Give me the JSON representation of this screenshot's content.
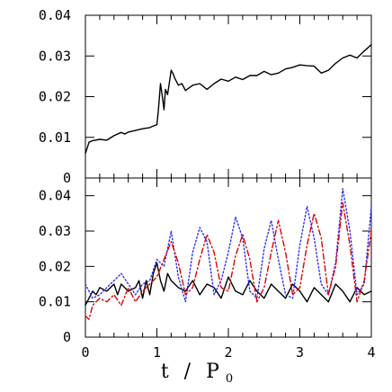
{
  "chart_data": [
    {
      "type": "line",
      "panel": "top",
      "xlim": [
        0,
        4
      ],
      "ylim": [
        0,
        0.04
      ],
      "y_ticks": [
        0,
        0.01,
        0.02,
        0.03,
        0.04
      ],
      "y_tick_labels": [
        "0",
        "0.01",
        "0.02",
        "0.03",
        "0.04"
      ],
      "grid": false,
      "series": [
        {
          "color": "#000000",
          "style": "solid",
          "x": [
            0,
            0.05,
            0.1,
            0.2,
            0.3,
            0.4,
            0.5,
            0.55,
            0.6,
            0.7,
            0.8,
            0.9,
            0.95,
            1.0,
            1.02,
            1.05,
            1.08,
            1.1,
            1.12,
            1.15,
            1.2,
            1.23,
            1.25,
            1.3,
            1.35,
            1.4,
            1.5,
            1.6,
            1.7,
            1.8,
            1.9,
            2.0,
            2.1,
            2.2,
            2.3,
            2.4,
            2.5,
            2.6,
            2.7,
            2.8,
            2.9,
            3.0,
            3.1,
            3.2,
            3.3,
            3.4,
            3.5,
            3.6,
            3.7,
            3.8,
            3.9,
            4.0
          ],
          "y": [
            0.006,
            0.0088,
            0.0092,
            0.0095,
            0.0093,
            0.0104,
            0.0112,
            0.0108,
            0.0113,
            0.0117,
            0.0121,
            0.0124,
            0.0128,
            0.0131,
            0.0165,
            0.0232,
            0.0195,
            0.0168,
            0.0218,
            0.0205,
            0.0265,
            0.0255,
            0.0245,
            0.0228,
            0.0232,
            0.0215,
            0.0228,
            0.0232,
            0.0218,
            0.0232,
            0.0243,
            0.0238,
            0.0248,
            0.0242,
            0.0252,
            0.0252,
            0.0262,
            0.0254,
            0.0258,
            0.0268,
            0.0272,
            0.0278,
            0.0276,
            0.0275,
            0.0258,
            0.0265,
            0.0282,
            0.0295,
            0.0302,
            0.0295,
            0.0312,
            0.0328
          ]
        }
      ]
    },
    {
      "type": "line",
      "panel": "bottom",
      "xlabel": "t",
      "xlabel_sep": "/",
      "xlabel_var": "P",
      "xlabel_sub": "0",
      "xlim": [
        0,
        4
      ],
      "ylim": [
        0,
        0.045
      ],
      "x_ticks": [
        0,
        1,
        2,
        3,
        4
      ],
      "x_tick_labels": [
        "0",
        "1",
        "2",
        "3",
        "4"
      ],
      "y_ticks": [
        0,
        0.01,
        0.02,
        0.03,
        0.04
      ],
      "y_tick_labels": [
        "0",
        "0.01",
        "0.02",
        "0.03",
        "0.04"
      ],
      "grid": false,
      "series": [
        {
          "color": "#000000",
          "style": "solid",
          "x": [
            0,
            0.05,
            0.1,
            0.15,
            0.2,
            0.3,
            0.4,
            0.45,
            0.5,
            0.6,
            0.7,
            0.75,
            0.8,
            0.85,
            0.9,
            0.95,
            1.0,
            1.05,
            1.1,
            1.15,
            1.2,
            1.3,
            1.4,
            1.5,
            1.6,
            1.7,
            1.8,
            1.9,
            2.0,
            2.1,
            2.2,
            2.3,
            2.4,
            2.5,
            2.6,
            2.7,
            2.8,
            2.9,
            3.0,
            3.1,
            3.2,
            3.3,
            3.4,
            3.5,
            3.6,
            3.7,
            3.8,
            3.9,
            4.0
          ],
          "y": [
            0.009,
            0.011,
            0.013,
            0.012,
            0.014,
            0.013,
            0.015,
            0.012,
            0.015,
            0.013,
            0.014,
            0.016,
            0.011,
            0.016,
            0.012,
            0.018,
            0.021,
            0.016,
            0.013,
            0.018,
            0.016,
            0.014,
            0.013,
            0.016,
            0.012,
            0.015,
            0.014,
            0.011,
            0.017,
            0.013,
            0.012,
            0.016,
            0.013,
            0.011,
            0.015,
            0.013,
            0.011,
            0.015,
            0.013,
            0.01,
            0.014,
            0.012,
            0.01,
            0.015,
            0.013,
            0.01,
            0.014,
            0.012,
            0.013
          ]
        },
        {
          "color": "#2b2bff",
          "style": "dotted",
          "x": [
            0,
            0.05,
            0.1,
            0.2,
            0.3,
            0.4,
            0.5,
            0.6,
            0.7,
            0.8,
            0.9,
            1.0,
            1.1,
            1.2,
            1.3,
            1.4,
            1.5,
            1.6,
            1.7,
            1.8,
            1.9,
            2.0,
            2.1,
            2.2,
            2.3,
            2.4,
            2.5,
            2.6,
            2.7,
            2.8,
            2.9,
            3.0,
            3.1,
            3.2,
            3.3,
            3.4,
            3.5,
            3.6,
            3.7,
            3.8,
            3.9,
            4.0
          ],
          "y": [
            0.015,
            0.013,
            0.011,
            0.012,
            0.014,
            0.016,
            0.018,
            0.015,
            0.012,
            0.015,
            0.016,
            0.022,
            0.02,
            0.03,
            0.017,
            0.01,
            0.024,
            0.031,
            0.027,
            0.012,
            0.016,
            0.024,
            0.034,
            0.028,
            0.013,
            0.011,
            0.025,
            0.033,
            0.022,
            0.012,
            0.011,
            0.026,
            0.037,
            0.028,
            0.015,
            0.012,
            0.021,
            0.042,
            0.03,
            0.012,
            0.015,
            0.037
          ]
        },
        {
          "color": "#e00000",
          "style": "dashdot",
          "x": [
            0,
            0.05,
            0.1,
            0.2,
            0.3,
            0.4,
            0.5,
            0.6,
            0.7,
            0.8,
            0.9,
            1.0,
            1.1,
            1.2,
            1.3,
            1.4,
            1.5,
            1.6,
            1.7,
            1.8,
            1.9,
            2.0,
            2.1,
            2.2,
            2.3,
            2.4,
            2.5,
            2.6,
            2.7,
            2.8,
            2.9,
            3.0,
            3.1,
            3.2,
            3.3,
            3.4,
            3.5,
            3.6,
            3.7,
            3.8,
            3.9,
            4.0
          ],
          "y": [
            0.006,
            0.005,
            0.009,
            0.011,
            0.01,
            0.012,
            0.009,
            0.014,
            0.01,
            0.013,
            0.015,
            0.017,
            0.022,
            0.027,
            0.021,
            0.012,
            0.014,
            0.022,
            0.029,
            0.024,
            0.014,
            0.013,
            0.023,
            0.029,
            0.022,
            0.01,
            0.014,
            0.024,
            0.033,
            0.024,
            0.012,
            0.014,
            0.026,
            0.035,
            0.028,
            0.012,
            0.02,
            0.038,
            0.026,
            0.01,
            0.016,
            0.03
          ]
        }
      ]
    }
  ]
}
